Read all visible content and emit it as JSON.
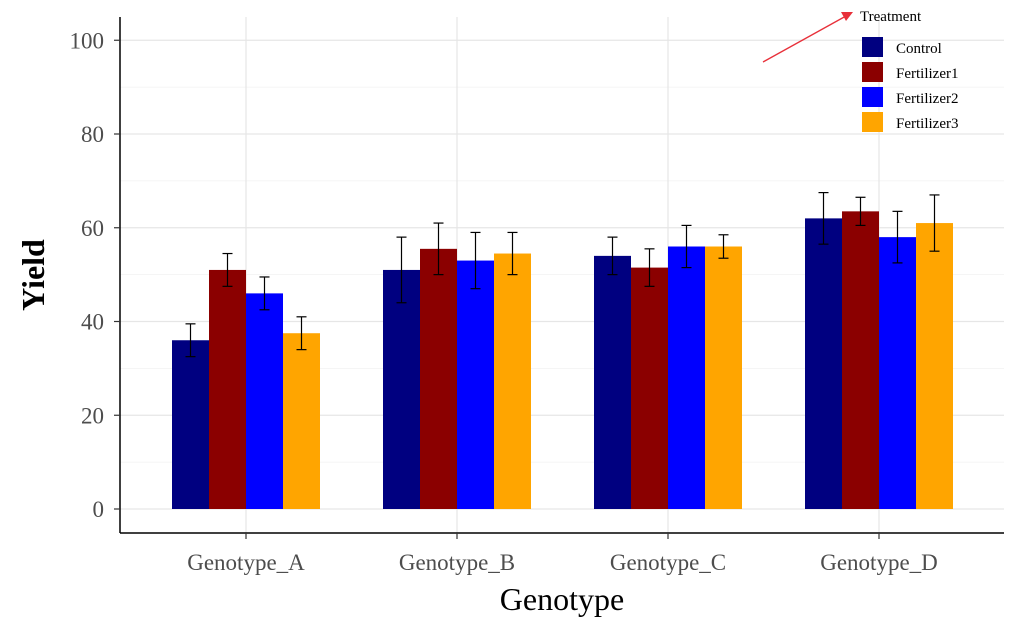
{
  "chart_data": {
    "type": "bar",
    "xlabel": "Genotype",
    "ylabel": "Yield",
    "ylim": [
      0,
      105
    ],
    "yticks": [
      "0",
      "20",
      "40",
      "60",
      "80",
      "100"
    ],
    "grid": true,
    "legend": {
      "title": "Treatment",
      "position": "top-right"
    },
    "categories": [
      "Genotype_A",
      "Genotype_B",
      "Genotype_C",
      "Genotype_D"
    ],
    "series": [
      {
        "name": "Control",
        "color": "#000080",
        "values": [
          36,
          51,
          54,
          62
        ],
        "error": [
          3.5,
          7,
          4,
          5.5
        ]
      },
      {
        "name": "Fertilizer1",
        "color": "#8b0000",
        "values": [
          51,
          55.5,
          51.5,
          63.5
        ],
        "error": [
          3.5,
          5.5,
          4,
          3
        ]
      },
      {
        "name": "Fertilizer2",
        "color": "#0000ff",
        "values": [
          46,
          53,
          56,
          58
        ],
        "error": [
          3.5,
          6,
          4.5,
          5.5
        ]
      },
      {
        "name": "Fertilizer3",
        "color": "#ffa500",
        "values": [
          37.5,
          54.5,
          56,
          61
        ],
        "error": [
          3.5,
          4.5,
          2.5,
          6
        ]
      }
    ],
    "annotation": {
      "type": "arrow",
      "color": "#e8303a"
    }
  }
}
